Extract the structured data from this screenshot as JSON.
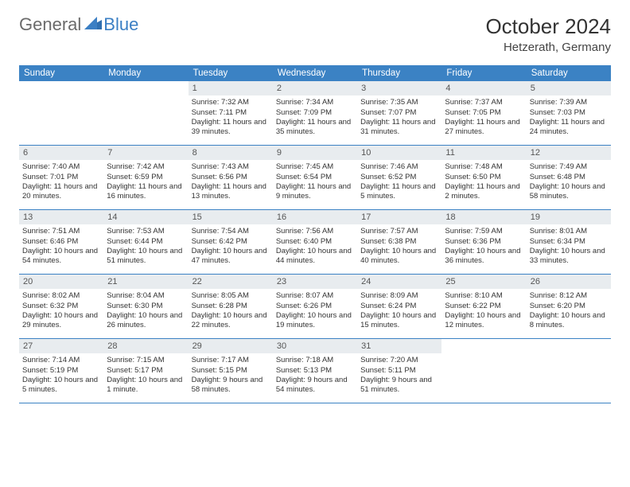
{
  "logo": {
    "text_gray": "General",
    "text_blue": "Blue"
  },
  "header": {
    "title": "October 2024",
    "location": "Hetzerath, Germany"
  },
  "colors": {
    "header_bg": "#3b82c4",
    "daynum_bg": "#e8ecef",
    "border": "#3b82c4",
    "logo_gray": "#6b6b6b",
    "logo_blue": "#3b7fc4"
  },
  "day_names": [
    "Sunday",
    "Monday",
    "Tuesday",
    "Wednesday",
    "Thursday",
    "Friday",
    "Saturday"
  ],
  "weeks": [
    [
      {
        "n": "",
        "sr": "",
        "ss": "",
        "dl": ""
      },
      {
        "n": "",
        "sr": "",
        "ss": "",
        "dl": ""
      },
      {
        "n": "1",
        "sr": "Sunrise: 7:32 AM",
        "ss": "Sunset: 7:11 PM",
        "dl": "Daylight: 11 hours and 39 minutes."
      },
      {
        "n": "2",
        "sr": "Sunrise: 7:34 AM",
        "ss": "Sunset: 7:09 PM",
        "dl": "Daylight: 11 hours and 35 minutes."
      },
      {
        "n": "3",
        "sr": "Sunrise: 7:35 AM",
        "ss": "Sunset: 7:07 PM",
        "dl": "Daylight: 11 hours and 31 minutes."
      },
      {
        "n": "4",
        "sr": "Sunrise: 7:37 AM",
        "ss": "Sunset: 7:05 PM",
        "dl": "Daylight: 11 hours and 27 minutes."
      },
      {
        "n": "5",
        "sr": "Sunrise: 7:39 AM",
        "ss": "Sunset: 7:03 PM",
        "dl": "Daylight: 11 hours and 24 minutes."
      }
    ],
    [
      {
        "n": "6",
        "sr": "Sunrise: 7:40 AM",
        "ss": "Sunset: 7:01 PM",
        "dl": "Daylight: 11 hours and 20 minutes."
      },
      {
        "n": "7",
        "sr": "Sunrise: 7:42 AM",
        "ss": "Sunset: 6:59 PM",
        "dl": "Daylight: 11 hours and 16 minutes."
      },
      {
        "n": "8",
        "sr": "Sunrise: 7:43 AM",
        "ss": "Sunset: 6:56 PM",
        "dl": "Daylight: 11 hours and 13 minutes."
      },
      {
        "n": "9",
        "sr": "Sunrise: 7:45 AM",
        "ss": "Sunset: 6:54 PM",
        "dl": "Daylight: 11 hours and 9 minutes."
      },
      {
        "n": "10",
        "sr": "Sunrise: 7:46 AM",
        "ss": "Sunset: 6:52 PM",
        "dl": "Daylight: 11 hours and 5 minutes."
      },
      {
        "n": "11",
        "sr": "Sunrise: 7:48 AM",
        "ss": "Sunset: 6:50 PM",
        "dl": "Daylight: 11 hours and 2 minutes."
      },
      {
        "n": "12",
        "sr": "Sunrise: 7:49 AM",
        "ss": "Sunset: 6:48 PM",
        "dl": "Daylight: 10 hours and 58 minutes."
      }
    ],
    [
      {
        "n": "13",
        "sr": "Sunrise: 7:51 AM",
        "ss": "Sunset: 6:46 PM",
        "dl": "Daylight: 10 hours and 54 minutes."
      },
      {
        "n": "14",
        "sr": "Sunrise: 7:53 AM",
        "ss": "Sunset: 6:44 PM",
        "dl": "Daylight: 10 hours and 51 minutes."
      },
      {
        "n": "15",
        "sr": "Sunrise: 7:54 AM",
        "ss": "Sunset: 6:42 PM",
        "dl": "Daylight: 10 hours and 47 minutes."
      },
      {
        "n": "16",
        "sr": "Sunrise: 7:56 AM",
        "ss": "Sunset: 6:40 PM",
        "dl": "Daylight: 10 hours and 44 minutes."
      },
      {
        "n": "17",
        "sr": "Sunrise: 7:57 AM",
        "ss": "Sunset: 6:38 PM",
        "dl": "Daylight: 10 hours and 40 minutes."
      },
      {
        "n": "18",
        "sr": "Sunrise: 7:59 AM",
        "ss": "Sunset: 6:36 PM",
        "dl": "Daylight: 10 hours and 36 minutes."
      },
      {
        "n": "19",
        "sr": "Sunrise: 8:01 AM",
        "ss": "Sunset: 6:34 PM",
        "dl": "Daylight: 10 hours and 33 minutes."
      }
    ],
    [
      {
        "n": "20",
        "sr": "Sunrise: 8:02 AM",
        "ss": "Sunset: 6:32 PM",
        "dl": "Daylight: 10 hours and 29 minutes."
      },
      {
        "n": "21",
        "sr": "Sunrise: 8:04 AM",
        "ss": "Sunset: 6:30 PM",
        "dl": "Daylight: 10 hours and 26 minutes."
      },
      {
        "n": "22",
        "sr": "Sunrise: 8:05 AM",
        "ss": "Sunset: 6:28 PM",
        "dl": "Daylight: 10 hours and 22 minutes."
      },
      {
        "n": "23",
        "sr": "Sunrise: 8:07 AM",
        "ss": "Sunset: 6:26 PM",
        "dl": "Daylight: 10 hours and 19 minutes."
      },
      {
        "n": "24",
        "sr": "Sunrise: 8:09 AM",
        "ss": "Sunset: 6:24 PM",
        "dl": "Daylight: 10 hours and 15 minutes."
      },
      {
        "n": "25",
        "sr": "Sunrise: 8:10 AM",
        "ss": "Sunset: 6:22 PM",
        "dl": "Daylight: 10 hours and 12 minutes."
      },
      {
        "n": "26",
        "sr": "Sunrise: 8:12 AM",
        "ss": "Sunset: 6:20 PM",
        "dl": "Daylight: 10 hours and 8 minutes."
      }
    ],
    [
      {
        "n": "27",
        "sr": "Sunrise: 7:14 AM",
        "ss": "Sunset: 5:19 PM",
        "dl": "Daylight: 10 hours and 5 minutes."
      },
      {
        "n": "28",
        "sr": "Sunrise: 7:15 AM",
        "ss": "Sunset: 5:17 PM",
        "dl": "Daylight: 10 hours and 1 minute."
      },
      {
        "n": "29",
        "sr": "Sunrise: 7:17 AM",
        "ss": "Sunset: 5:15 PM",
        "dl": "Daylight: 9 hours and 58 minutes."
      },
      {
        "n": "30",
        "sr": "Sunrise: 7:18 AM",
        "ss": "Sunset: 5:13 PM",
        "dl": "Daylight: 9 hours and 54 minutes."
      },
      {
        "n": "31",
        "sr": "Sunrise: 7:20 AM",
        "ss": "Sunset: 5:11 PM",
        "dl": "Daylight: 9 hours and 51 minutes."
      },
      {
        "n": "",
        "sr": "",
        "ss": "",
        "dl": ""
      },
      {
        "n": "",
        "sr": "",
        "ss": "",
        "dl": ""
      }
    ]
  ]
}
